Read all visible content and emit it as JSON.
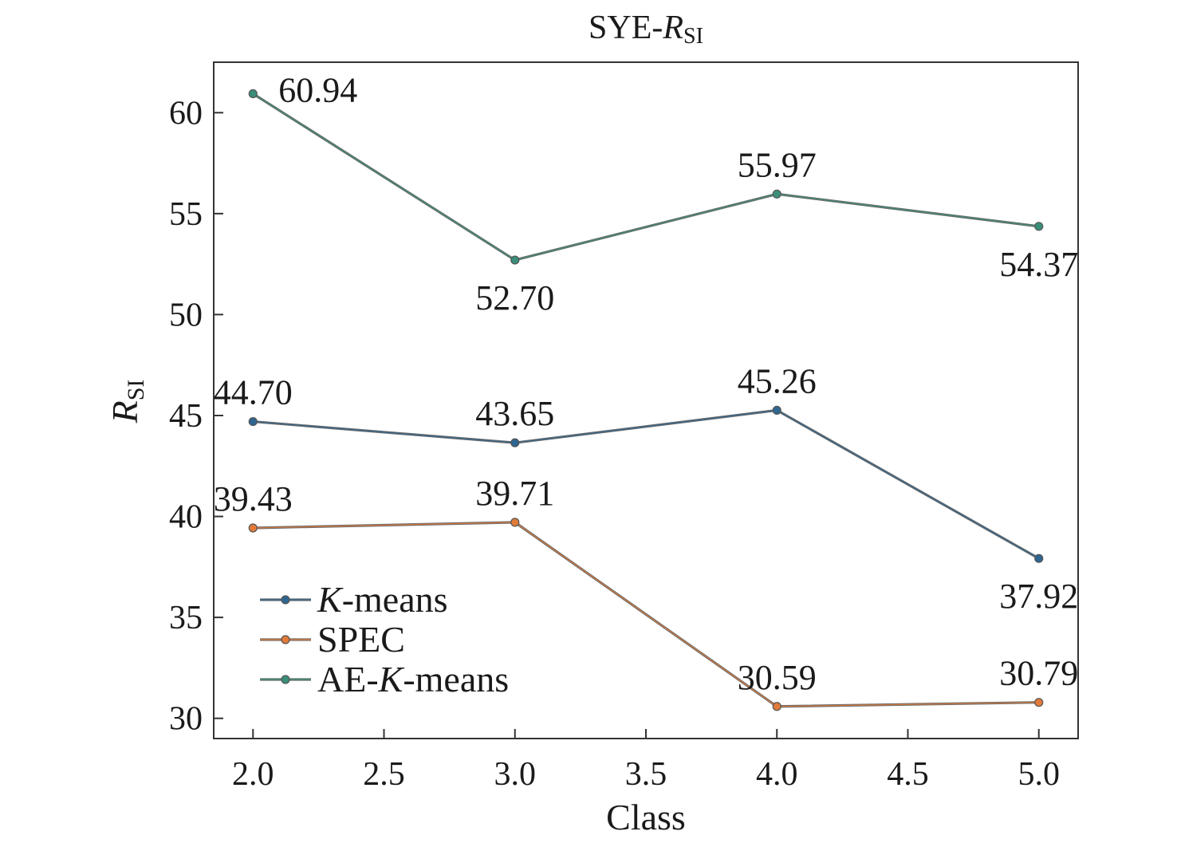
{
  "chart_data": {
    "type": "line",
    "title": {
      "main": "SYE-",
      "var": "R",
      "sub": "SI"
    },
    "xlabel": "Class",
    "ylabel": {
      "var": "R",
      "sub": "SI"
    },
    "xlim": [
      1.85,
      5.15
    ],
    "ylim": [
      29,
      62.5
    ],
    "xticks": [
      2.0,
      2.5,
      3.0,
      3.5,
      4.0,
      4.5,
      5.0
    ],
    "xtick_labels": [
      "2.0",
      "2.5",
      "3.0",
      "3.5",
      "4.0",
      "4.5",
      "5.0"
    ],
    "yticks": [
      30,
      35,
      40,
      45,
      50,
      55,
      60
    ],
    "ytick_labels": [
      "30",
      "35",
      "40",
      "45",
      "50",
      "55",
      "60"
    ],
    "grid": false,
    "legend_position": "lower-left",
    "x": [
      2.0,
      3.0,
      4.0,
      5.0
    ],
    "series": [
      {
        "name": {
          "italic": "K",
          "rest": "-means"
        },
        "color": "#2f6690",
        "values": [
          44.7,
          43.65,
          45.26,
          37.92
        ],
        "labels": [
          "44.70",
          "43.65",
          "45.26",
          "37.92"
        ],
        "label_positions": [
          "above",
          "above",
          "above",
          "below"
        ]
      },
      {
        "name": {
          "italic": "",
          "rest": "SPEC"
        },
        "color": "#e07b39",
        "values": [
          39.43,
          39.71,
          30.59,
          30.79
        ],
        "labels": [
          "39.43",
          "39.71",
          "30.59",
          "30.79"
        ],
        "label_positions": [
          "above",
          "above",
          "above",
          "above"
        ]
      },
      {
        "name": {
          "prefix": "AE-",
          "italic": "K",
          "rest": "-means"
        },
        "color": "#3a8f7a",
        "values": [
          60.94,
          52.7,
          55.97,
          54.37
        ],
        "labels": [
          "60.94",
          "52.70",
          "55.97",
          "54.37"
        ],
        "label_positions": [
          "right",
          "below",
          "above",
          "below"
        ]
      }
    ]
  }
}
